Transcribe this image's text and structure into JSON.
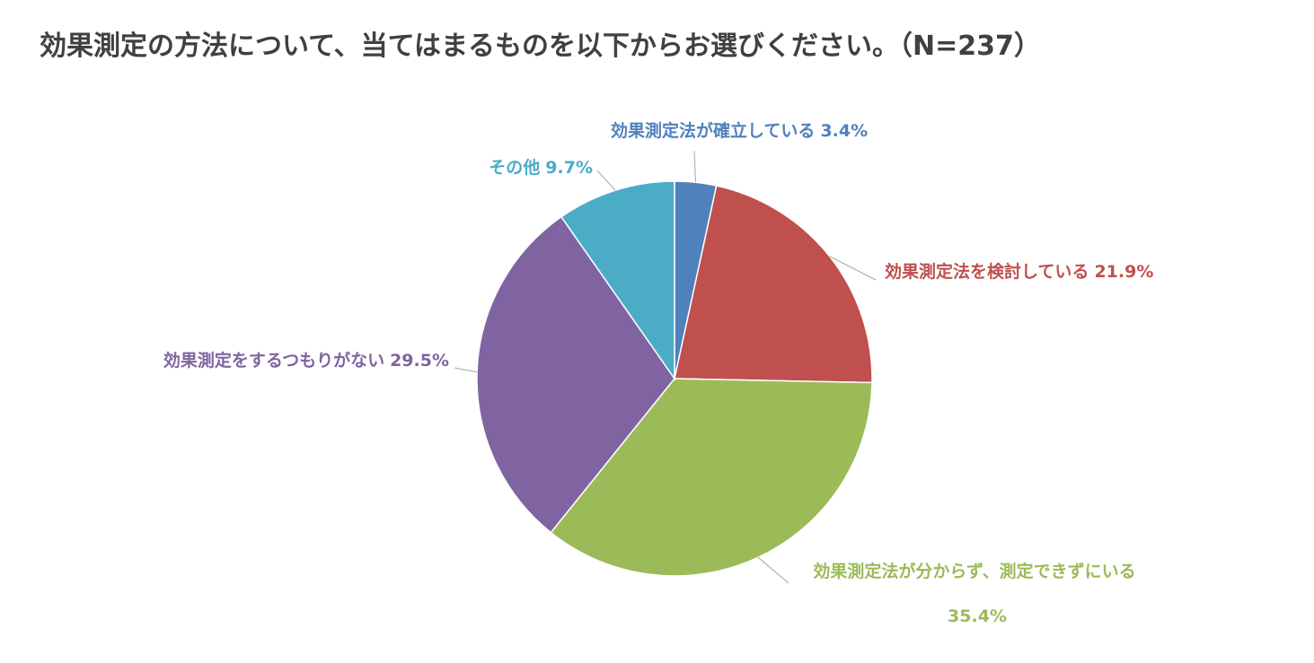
{
  "chart_data": {
    "type": "pie",
    "title": "効果測定の方法について、当てはまるものを以下からお選びください。（N=237）",
    "categories": [
      "効果測定法が確立している",
      "効果測定法を検討している",
      "効果測定法が分からず、測定できずにいる",
      "効果測定をするつもりがない",
      "その他"
    ],
    "values": [
      3.4,
      21.9,
      35.4,
      29.5,
      9.7
    ],
    "value_labels": [
      "3.4%",
      "21.9%",
      "35.4%",
      "29.5%",
      "9.7%"
    ],
    "colors": [
      "#4f81bd",
      "#c0504d",
      "#9bbb59",
      "#8064a2",
      "#4bacc6"
    ]
  }
}
